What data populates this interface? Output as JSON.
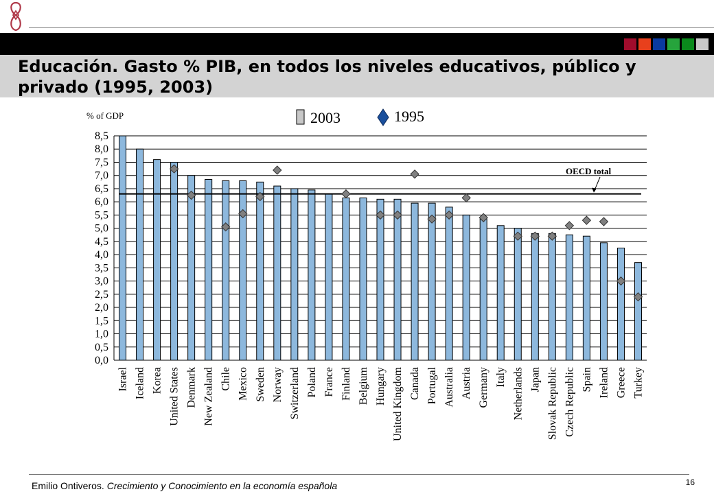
{
  "slide": {
    "title": "Educación. Gasto % PIB, en todos los niveles educativos, público y privado (1995, 2003)",
    "footer_author": "Emilio Ontiveros.",
    "footer_book": "Crecimiento y Conocimiento en  la economía española",
    "page_number": "16",
    "accent_colors": [
      "#a00c2c",
      "#e8401c",
      "#0a3aa0",
      "#26a43c",
      "#0a8a1c",
      "#c8c8c8"
    ]
  },
  "chart_data": {
    "type": "bar",
    "ylabel": "% of GDP",
    "ylim": [
      0,
      8.5
    ],
    "yticks": [
      "0,0",
      "0,5",
      "1,0",
      "1,5",
      "2,0",
      "2,5",
      "3,0",
      "3,5",
      "4,0",
      "4,5",
      "5,0",
      "5,5",
      "6,0",
      "6,5",
      "7,0",
      "7,5",
      "8,0",
      "8,5"
    ],
    "grid": true,
    "legend_position": "top",
    "categories": [
      "Israel",
      "Iceland",
      "Korea",
      "United States",
      "Denmark",
      "New Zealand",
      "Chile",
      "Mexico",
      "Sweden",
      "Norway",
      "Switzerland",
      "Poland",
      "France",
      "Finland",
      "Belgium",
      "Hungary",
      "United Kingdom",
      "Canada",
      "Portugal",
      "Australia",
      "Austria",
      "Germany",
      "Italy",
      "Netherlands",
      "Japan",
      "Slovak Republic",
      "Czech Republic",
      "Spain",
      "Ireland",
      "Greece",
      "Turkey"
    ],
    "series": [
      {
        "name": "2003",
        "type": "bar",
        "color": "#8db8dd",
        "values": [
          8.5,
          8.0,
          7.6,
          7.5,
          7.0,
          6.85,
          6.8,
          6.8,
          6.75,
          6.6,
          6.5,
          6.45,
          6.3,
          6.15,
          6.15,
          6.1,
          6.1,
          5.95,
          5.95,
          5.8,
          5.5,
          5.35,
          5.1,
          5.0,
          4.8,
          4.8,
          4.75,
          4.7,
          4.45,
          4.25,
          3.7
        ]
      },
      {
        "name": "1995",
        "type": "marker",
        "color": "#808080",
        "values": [
          null,
          null,
          null,
          7.25,
          6.25,
          null,
          5.05,
          5.55,
          6.2,
          7.2,
          null,
          null,
          null,
          6.3,
          null,
          5.5,
          5.5,
          7.05,
          5.35,
          5.5,
          6.15,
          5.4,
          null,
          4.7,
          4.7,
          4.7,
          5.1,
          5.3,
          5.25,
          3.0,
          2.4
        ]
      }
    ],
    "reference_line": {
      "label": "OECD total",
      "value": 6.3
    }
  }
}
